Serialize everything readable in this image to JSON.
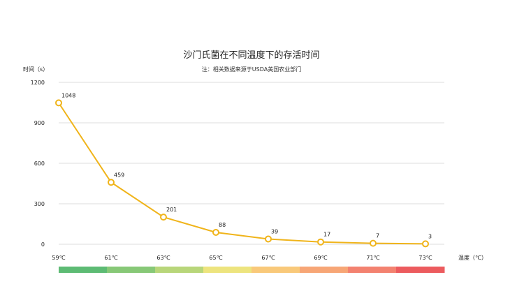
{
  "chart_data": {
    "type": "line",
    "title": "沙门氏菌在不同温度下的存活时间",
    "subtitle": "注：相关数据来源于USDA美国农业部门",
    "ylabel": "时间（s）",
    "xlabel": "温度（℃）",
    "categories": [
      "59℃",
      "61℃",
      "63℃",
      "65℃",
      "67℃",
      "69℃",
      "71℃",
      "73℃"
    ],
    "values": [
      1048,
      459,
      201,
      88,
      39,
      17,
      7,
      3
    ],
    "ylim": [
      0,
      1200
    ],
    "yticks": [
      0,
      300,
      600,
      900,
      1200
    ],
    "grid": true,
    "line_color": "#f0b41a",
    "gradient_colors": [
      "#5dbb74",
      "#87c877",
      "#b8d67a",
      "#ede47e",
      "#f9c97a",
      "#f7a676",
      "#f38270",
      "#ec5b5e"
    ]
  }
}
